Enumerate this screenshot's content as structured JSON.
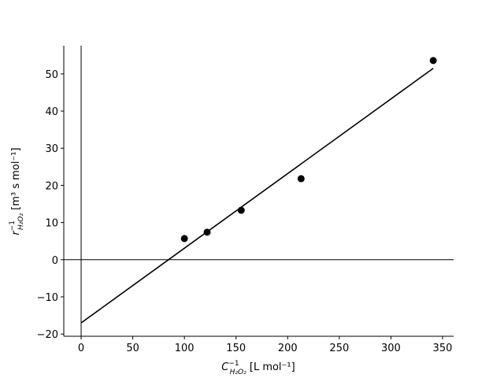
{
  "chart_data": {
    "type": "scatter",
    "x": [
      100,
      122,
      155,
      213,
      341
    ],
    "values": [
      5.7,
      7.4,
      13.3,
      21.8,
      53.6
    ],
    "color": "#000000",
    "fit_line": {
      "x": [
        0,
        341
      ],
      "values": [
        -17.0,
        51.5
      ],
      "color": "#000000"
    },
    "reference_lines": {
      "x": 0,
      "y": 0
    },
    "xlim": [
      -16.8,
      360.7
    ],
    "ylim": [
      -20.6,
      57.6
    ],
    "xticks": [
      0,
      50,
      100,
      150,
      200,
      250,
      300,
      350
    ],
    "yticks": [
      {
        "value": -20,
        "label": "−20"
      },
      {
        "value": -10,
        "label": "−10"
      },
      0,
      10,
      20,
      30,
      40,
      50
    ],
    "xlabel": {
      "symbol": "C",
      "superscript": "−1",
      "subscript": "H₂O₂",
      "unit": " [L mol⁻¹]"
    },
    "ylabel": {
      "symbol": "r",
      "superscript": "−1",
      "subscript": "H₂O₂",
      "unit": " [m³ s mol⁻¹]"
    }
  }
}
